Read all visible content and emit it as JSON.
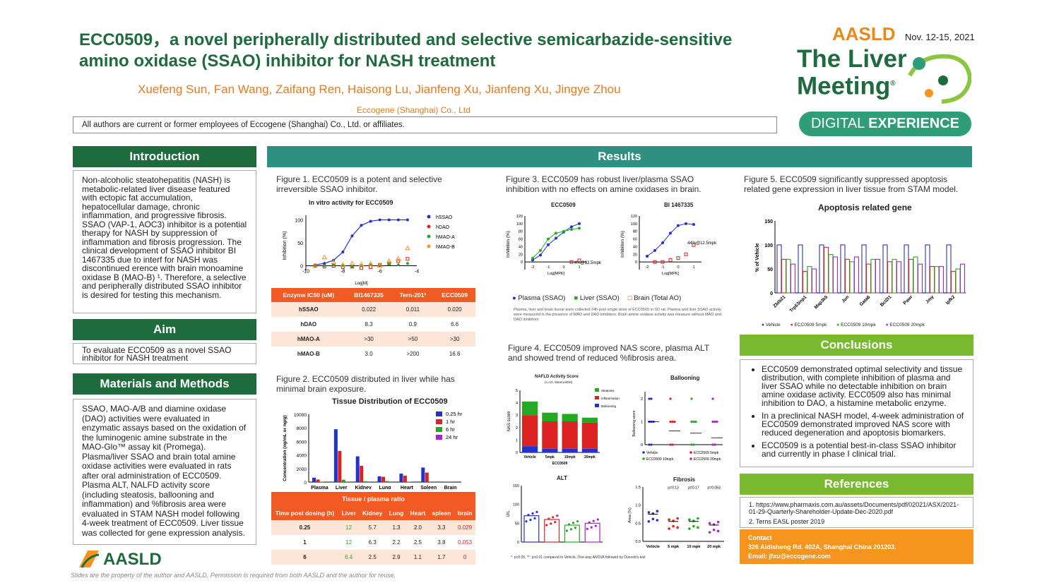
{
  "header": {
    "title": "ECC0509，a novel peripherally distributed and selective semicarbazide-sensitive amino oxidase (SSAO) inhibitor for NASH treatment",
    "authors": "Xuefeng Sun, Fan Wang, Zaifang Ren, Haisong Lu, Jianfeng Xu, Jianfeng Xu, Jingye Zhou",
    "affiliation": "Eccogene (Shanghai) Co., Ltd",
    "disclosure": "All authors are current or former employees of Eccogene (Shanghai) Co., Ltd. or affiliates."
  },
  "branding": {
    "aasld": "AASLD",
    "date": "Nov. 12-15, 2021",
    "meeting_line1": "The Liver",
    "meeting_line2": "Meeting",
    "registered": "®",
    "digital": "DIGITAL ",
    "experience": "EXPERIENCE",
    "footer_logo": "AASLD",
    "footer_note": "Slides are the property of the author and AASLD. Permission is required from both AASLD and the author for reuse."
  },
  "introduction": {
    "heading": "Introduction",
    "text": "Non-alcoholic steatohepatitis (NASH) is metabolic-related liver disease featured with ectopic fat accumulation, hepatocellular damage, chronic inflammation, and progressive fibrosis. SSAO (VAP-1, AOC3) inhibitor is a potential therapy for NASH by suppression of inflammation and fibrosis progression. The clinical development of SSAO inhibitor BI 1467335 due to interf for NASH was discontinued erence with brain monoamine oxidase B (MAO-B) ¹. Therefore, a selective and peripherally distributed SSAO inhibitor is desired for testing this mechanism."
  },
  "aim": {
    "heading": "Aim",
    "text": "To evaluate ECC0509 as a novel SSAO inhibitor for NASH treatment"
  },
  "methods": {
    "heading": "Materials and Methods",
    "text": "SSAO, MAO-A/B and diamine oxidase (DAO) activities were evaluated in enzymatic assays based on the oxidation of the luminogenic amine substrate in the MAO-Glo™ assay kit (Promega). Plasma/liver SSAO and brain total amine oxidase activities were evaluated in rats after oral administration of ECC0509. Plasma ALT, NALFD activity score (including steatosis, ballooning and inflammation) and %fibrosis area were evaluated in STAM NASH model following 4-week treatment of ECC0509. Liver tissue was collected for gene expression analysis."
  },
  "results": {
    "heading": "Results"
  },
  "fig1": {
    "caption": "Figure 1. ECC0509 is a potent and selective irreversible SSAO inhibitor.",
    "chart_title": "In vitro activity for ECC0509",
    "ylabel": "Inhibition (%)",
    "xlabel": "Log[M]",
    "legend": [
      "hSSAO",
      "hDAO",
      "hMAO-A",
      "hMAO-B"
    ],
    "table_header": [
      "Enzyme IC50 (uM)",
      "BI1467335",
      "Tern-201²",
      "ECC0509"
    ],
    "table_rows": [
      [
        "hSSAO",
        "0.022",
        "0.011",
        "0.020"
      ],
      [
        "hDAO",
        "8.3",
        "0.9",
        "6.6"
      ],
      [
        "hMAO-A",
        ">30",
        ">50",
        ">30"
      ],
      [
        "hMAO-B",
        "3.0",
        ">200",
        "16.6"
      ]
    ]
  },
  "fig2": {
    "caption": "Figure 2. ECC0509 distributed in liver while has minimal brain exposure.",
    "chart_title": "Tissue Distribution of ECC0509",
    "ylabel": "Concentration (ng/mL or ng/g)",
    "table_title": "Tissue / plasma ratio",
    "table_header": [
      "Time post dosing (h)",
      "Liver",
      "Kidney",
      "Lung",
      "Heart",
      "spleen",
      "brain"
    ],
    "table_rows": [
      [
        "0.25",
        "12",
        "5.7",
        "1.3",
        "2.0",
        "3.3",
        "0.029"
      ],
      [
        "1",
        "12",
        "6.3",
        "2.2",
        "2.5",
        "3.8",
        "0.053"
      ],
      [
        "6",
        "6.4",
        "2.5",
        "2.9",
        "1.1",
        "1.7",
        "0"
      ]
    ]
  },
  "fig3": {
    "caption": "Figure 3. ECC0509 has robust liver/plasma SSAO inhibition with no effects on amine oxidases in brain.",
    "panel1": "ECC0509",
    "panel2": "BI 1467335",
    "ylabel": "Inhibition (%)",
    "xlabel": "Log[MPK]",
    "anno1": "4%@12.5mpk",
    "anno2": "44%@12.5mpk",
    "legend": [
      "Plasma (SSAO)",
      "Liver (SSAO)",
      "Brain (Total AO)"
    ],
    "note": "Plasma, liver and brain tissue were collected 24h post single dose of ECC0509 in SD rat. Plasma and liver SSAO activity were measured in the presence of MAO and DAO inhibitors. Brain amine oxidase activity was measure without MAO and DAO inhibitors"
  },
  "fig4": {
    "caption": "Figure 4. ECC0509 improved NAS score, plasma ALT and showed trend of reduced %fibrosis area.",
    "nafld_title": "NAFLD Activity Score",
    "nafld_sub": "(n=10, Mean±SEM)",
    "nafld_ylabel": "NAS score",
    "nafld_legend": [
      "Steatosis",
      "Inflammation",
      "Ballooning"
    ],
    "groups": [
      "Vehicle",
      "5mpk",
      "10mpk",
      "20mpk"
    ],
    "group_label": "ECC0509",
    "balloon_title": "Ballooning",
    "balloon_ylabel": "Ballooning score",
    "balloon_legend": [
      "Vehicle",
      "ECC0509 5mpk",
      "ECC0509 10mpk",
      "ECC0509 20mpk"
    ],
    "alt_title": "ALT",
    "alt_ylabel": "U/L",
    "fib_title": "Fibrosis",
    "fib_ylabel": "Area (%)",
    "fib_groups": [
      "Vehicle",
      "5 mpk",
      "10 mpk",
      "20 mpk"
    ],
    "fib_p": [
      "p=0.13",
      "p=0.17",
      "p=0.053"
    ],
    "footnote": "*: p<0.05, **: p<0.01 compared to Vehicle, One-way ANOVA followed by Dunnett's test"
  },
  "fig5": {
    "caption": "Figure 5. ECC0509 significantly suppressed apoptosis related gene expression in liver tissue from STAM model.",
    "chart_title": "Apoptosis related gene",
    "ylabel": "% of Vehicle",
    "legend": [
      "Vehicle",
      "ECC0509 5mpk",
      "ECC0509 10mpk",
      "ECC0509 20mpk"
    ]
  },
  "conclusions": {
    "heading": "Conclusions",
    "items": [
      "ECC0509 demonstrated optimal selectivity and tissue distribution, with complete inhibition of plasma and liver SSAO while no detectable inhibition on brain amine oxidase activity. ECC0509 also has minimal inhibition to DAO, a histamine metabolic enzyme.",
      "In a preclinical NASH model, 4-week administration of ECC0509 demonstrated improved NAS score with reduced degeneration and apoptosis biomarkers.",
      "ECC0509 is a potential best-in-class SSAO inhibitor and currently in phase I clinical trial."
    ]
  },
  "references": {
    "heading": "References",
    "items": [
      "1. https://www.pharmaxis.com.au/assets/Documents/pdf/02021/ASX/2021-01-29-Quarterly-Shareholder-Update-Dec-2020.pdf",
      "2. Terns EASL poster 2019"
    ]
  },
  "contact": {
    "label": "Contact",
    "address": "326 Aidisheng Rd. 402A, Shanghai China 201203.",
    "email": "Email: jfxu@eccogene.com"
  },
  "chart_data": [
    {
      "type": "line",
      "title": "In vitro activity for ECC0509",
      "xlabel": "Log[M]",
      "ylabel": "Inhibition (%)",
      "xlim": [
        -10,
        -4
      ],
      "ylim": [
        -10,
        110
      ],
      "series": [
        {
          "name": "hSSAO",
          "x": [
            -9.5,
            -9,
            -8.5,
            -8,
            -7.5,
            -7,
            -6.5,
            -6,
            -5.5,
            -5,
            -4.5
          ],
          "values": [
            2,
            5,
            12,
            30,
            65,
            88,
            97,
            100,
            100,
            100,
            100
          ]
        },
        {
          "name": "hDAO",
          "x": [
            -9.5,
            -9,
            -8.5,
            -8,
            -7.5,
            -7,
            -6.5,
            -6,
            -5.5,
            -5,
            -4.5
          ],
          "values": [
            0,
            -2,
            0,
            -3,
            -2,
            -5,
            -3,
            2,
            5,
            10,
            15
          ]
        },
        {
          "name": "hMAO-A",
          "x": [
            -9.5,
            -9,
            -8.5,
            -8,
            -7.5,
            -7,
            -6.5,
            -6,
            -5.5,
            -5,
            -4.5
          ],
          "values": [
            -2,
            0,
            2,
            0,
            -2,
            0,
            2,
            0,
            3,
            2,
            5
          ]
        },
        {
          "name": "hMAO-B",
          "x": [
            -9.5,
            -9,
            -8.5,
            -8,
            -7.5,
            -7,
            -6.5,
            -6,
            -5.5,
            -5,
            -4.5
          ],
          "values": [
            0,
            18,
            8,
            2,
            5,
            3,
            4,
            0,
            10,
            15,
            38
          ]
        }
      ]
    },
    {
      "type": "bar",
      "title": "Tissue Distribution of ECC0509",
      "ylabel": "Concentration (ng/mL or ng/g)",
      "ylim": [
        0,
        10000
      ],
      "categories": [
        "Plasma",
        "Liver",
        "Kidney",
        "Lung",
        "Heart",
        "Spleen",
        "Brain"
      ],
      "series": [
        {
          "name": "0.25 hr",
          "values": [
            650,
            7800,
            3800,
            850,
            1250,
            2150,
            20
          ]
        },
        {
          "name": "1 hr",
          "values": [
            380,
            4600,
            2400,
            780,
            950,
            1400,
            20
          ]
        },
        {
          "name": "6 hr",
          "values": [
            50,
            350,
            120,
            150,
            60,
            80,
            0
          ]
        },
        {
          "name": "24 hr",
          "values": [
            0,
            20,
            10,
            10,
            5,
            10,
            0
          ]
        }
      ]
    },
    {
      "type": "line",
      "title": "ECC0509",
      "xlabel": "Log[MPK]",
      "ylabel": "Inhibition (%)",
      "ylim": [
        -20,
        120
      ],
      "series": [
        {
          "name": "Plasma (SSAO)",
          "x": [
            -2,
            -1.5,
            -1,
            -0.5,
            0,
            0.5,
            1
          ],
          "values": [
            5,
            18,
            45,
            62,
            78,
            92,
            100
          ]
        },
        {
          "name": "Liver (SSAO)",
          "x": [
            -2,
            -1.5,
            -1,
            -0.5,
            0,
            0.5,
            1
          ],
          "values": [
            10,
            30,
            60,
            75,
            80,
            85,
            88
          ]
        },
        {
          "name": "Brain (Total AO)",
          "x": [
            0.5,
            1
          ],
          "values": [
            0,
            4
          ]
        }
      ]
    },
    {
      "type": "line",
      "title": "BI 1467335",
      "xlabel": "Log[MPK]",
      "ylabel": "Inhibition (%)",
      "ylim": [
        -20,
        120
      ],
      "series": [
        {
          "name": "Plasma (SSAO)",
          "x": [
            -2,
            -1.5,
            -1,
            -0.5,
            0,
            0.5,
            1
          ],
          "values": [
            15,
            30,
            50,
            75,
            95,
            100,
            98
          ]
        },
        {
          "name": "Brain (Total AO)",
          "x": [
            -1.5,
            -1,
            -0.5,
            0,
            0.5,
            1
          ],
          "values": [
            0,
            0,
            5,
            10,
            20,
            44
          ]
        }
      ]
    },
    {
      "type": "bar",
      "title": "NAFLD Activity Score",
      "ylabel": "NAS score",
      "ylim": [
        0,
        5
      ],
      "categories": [
        "Vehicle",
        "5mpk",
        "10mpk",
        "20mpk"
      ],
      "series": [
        {
          "name": "Ballooning",
          "values": [
            0.5,
            0.3,
            0.3,
            0.3
          ]
        },
        {
          "name": "Inflammation",
          "values": [
            2.5,
            2.2,
            2.2,
            2.1
          ]
        },
        {
          "name": "Steatosis",
          "values": [
            1.1,
            0.7,
            0.6,
            0.4
          ]
        }
      ]
    },
    {
      "type": "scatter",
      "title": "Ballooning",
      "ylabel": "Ballooning score",
      "ylim": [
        0,
        2
      ],
      "categories": [
        "Vehicle",
        "ECC0509 5mpk",
        "ECC0509 10mpk",
        "ECC0509 20mpk"
      ],
      "values": [
        1.0,
        0.6,
        0.5,
        0.3
      ]
    },
    {
      "type": "bar",
      "title": "ALT",
      "ylabel": "U/L",
      "ylim": [
        0,
        150
      ],
      "categories": [
        "Vehicle",
        "5mpk",
        "10mpk",
        "20mpk"
      ],
      "values": [
        70,
        60,
        45,
        50
      ]
    },
    {
      "type": "bar",
      "title": "Fibrosis",
      "ylabel": "Area (%)",
      "ylim": [
        0,
        1.5
      ],
      "categories": [
        "Vehicle",
        "5 mpk",
        "10 mpk",
        "20 mpk"
      ],
      "values": [
        0.75,
        0.55,
        0.55,
        0.45
      ]
    },
    {
      "type": "bar",
      "title": "Apoptosis related gene",
      "ylabel": "% of Vehicle",
      "ylim": [
        0,
        150
      ],
      "categories": [
        "Zbtb21",
        "Trp53inp1",
        "Map3k5",
        "Jun",
        "Gata6",
        "Bcl2l1",
        "Pawr",
        "Jmy",
        "Ipfk2"
      ],
      "series": [
        {
          "name": "Vehicle",
          "values": [
            100,
            100,
            100,
            100,
            100,
            100,
            100,
            100,
            100
          ]
        },
        {
          "name": "ECC0509 5mpk",
          "values": [
            70,
            45,
            95,
            70,
            60,
            65,
            70,
            55,
            45
          ]
        },
        {
          "name": "ECC0509 10mpk",
          "values": [
            70,
            55,
            80,
            65,
            70,
            70,
            75,
            55,
            50
          ]
        },
        {
          "name": "ECC0509 20mpk",
          "values": [
            60,
            50,
            75,
            75,
            70,
            65,
            60,
            55,
            60
          ]
        }
      ]
    }
  ]
}
